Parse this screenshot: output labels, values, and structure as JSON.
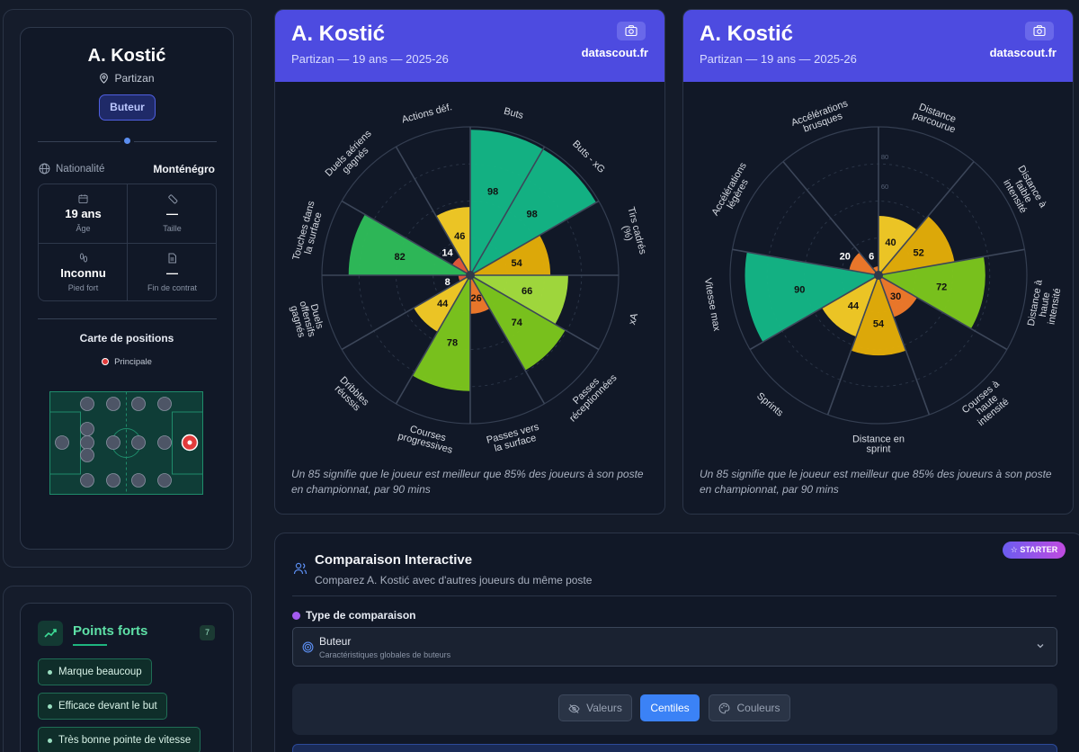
{
  "player": {
    "name": "A. Kostić",
    "club": "Partizan",
    "role": "Buteur",
    "nationality_label": "Nationalité",
    "nationality": "Monténégro",
    "info": [
      {
        "value": "19 ans",
        "label": "Âge",
        "icon": "calendar-icon"
      },
      {
        "value": "—",
        "label": "Taille",
        "icon": "ruler-icon"
      },
      {
        "value": "Inconnu",
        "label": "Pied fort",
        "icon": "footprints-icon"
      },
      {
        "value": "—",
        "label": "Fin de contrat",
        "icon": "document-icon"
      }
    ]
  },
  "position_map": {
    "title": "Carte de positions",
    "legend": "Principale",
    "highlight_color": "#e23b3b"
  },
  "strengths": {
    "title": "Points forts",
    "count": "7",
    "items": [
      "Marque beaucoup",
      "Efficace devant le but",
      "Très bonne pointe de vitesse"
    ]
  },
  "radars": [
    {
      "name": "A. Kostić",
      "subtitle": "Partizan — 19 ans — 2025-26",
      "site": "datascout.fr",
      "note": "Un 85 signifie que le joueur est meilleur que 85% des joueurs à son poste en championnat, par 90 mins",
      "chart_data": {
        "type": "polar-bar",
        "range": [
          0,
          100
        ],
        "labels": [
          "Buts",
          "Buts - xG",
          "Tirs cadrés (%)",
          "xA",
          "Passes réceptionnées",
          "Passes vers la surface",
          "Courses progressives",
          "Dribbles réussis",
          "Duels offensifs gagnés",
          "Touches dans la surface",
          "Duels aériens gagnés",
          "Actions déf."
        ],
        "values": [
          98,
          98,
          54,
          66,
          74,
          26,
          78,
          44,
          8,
          82,
          14,
          46
        ],
        "colors": [
          "#14b887",
          "#14b887",
          "#e8b007",
          "#a6e03d",
          "#7ec91c",
          "#f47b2a",
          "#7ec91c",
          "#f8cd25",
          "#e85a3b",
          "#2fbf5a",
          "#e85a3b",
          "#f8cd25"
        ]
      }
    },
    {
      "name": "A. Kostić",
      "subtitle": "Partizan — 19 ans — 2025-26",
      "site": "datascout.fr",
      "note": "Un 85 signifie que le joueur est meilleur que 85% des joueurs à son poste en championnat, par 90 mins",
      "chart_data": {
        "type": "polar-bar",
        "range": [
          0,
          100
        ],
        "ticks": [
          "60",
          "80"
        ],
        "labels": [
          "Distance parcourue",
          "Distance à faible intensité",
          "Distance à haute intensité",
          "Courses à haute intensité",
          "Distance en sprint",
          "Sprints",
          "Vitesse max",
          "Accélérations légères",
          "Accélérations brusques"
        ],
        "values": [
          40,
          52,
          72,
          30,
          54,
          44,
          90,
          20,
          6
        ],
        "colors": [
          "#f8cd25",
          "#e8b007",
          "#7ec91c",
          "#f47b2a",
          "#e8b007",
          "#f8cd25",
          "#14b887",
          "#f47b2a",
          "#f47b2a"
        ]
      }
    }
  ],
  "comparison": {
    "title": "Comparaison Interactive",
    "subtitle": "Comparez A. Kostić avec d'autres joueurs du même poste",
    "badge": "STARTER",
    "type_label": "Type de comparaison",
    "select_value": "Buteur",
    "select_desc": "Caractéristiques globales de buteurs",
    "buttons": [
      "Valeurs",
      "Centiles",
      "Couleurs"
    ],
    "active_button": "Centiles"
  }
}
